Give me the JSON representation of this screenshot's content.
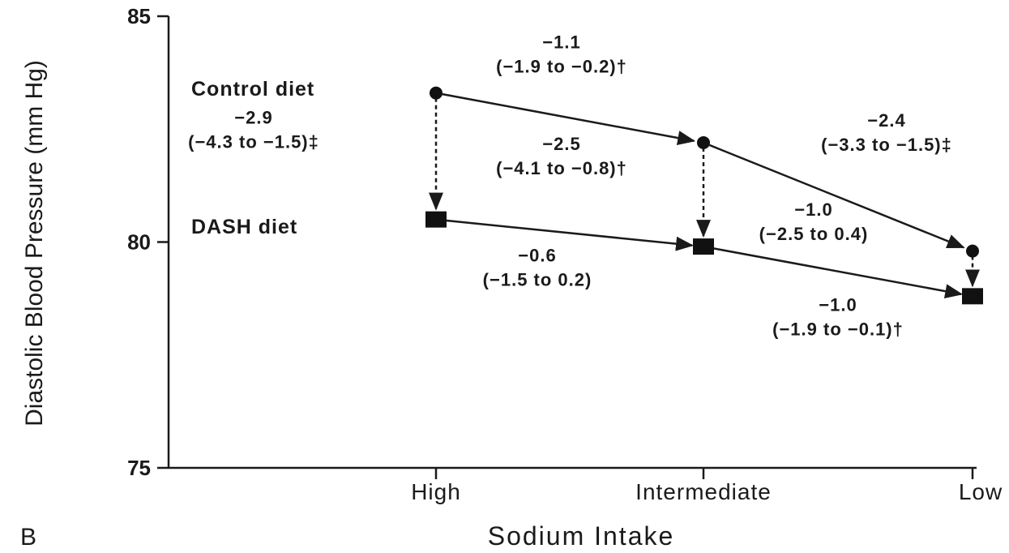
{
  "chart_data": {
    "type": "line",
    "panel_label": "B",
    "xlabel": "Sodium Intake",
    "ylabel": "Diastolic Blood Pressure (mm Hg)",
    "ylim": [
      75,
      85
    ],
    "yticks": [
      75,
      80,
      85
    ],
    "categories": [
      "High",
      "Intermediate",
      "Low"
    ],
    "grid": false,
    "series": [
      {
        "name": "Control diet",
        "marker": "circle",
        "values": [
          83.3,
          82.2,
          79.8
        ]
      },
      {
        "name": "DASH diet",
        "marker": "square",
        "values": [
          80.5,
          79.9,
          78.8
        ]
      }
    ],
    "annotations": [
      {
        "id": "control-high-int",
        "lines": [
          "−1.1",
          "(−1.9 to −0.2)†"
        ]
      },
      {
        "id": "control-int-low",
        "lines": [
          "−2.4",
          "(−3.3 to −1.5)‡"
        ]
      },
      {
        "id": "diet-high",
        "lines": [
          "−2.9",
          "(−4.3 to −1.5)‡"
        ]
      },
      {
        "id": "diet-int",
        "lines": [
          "−2.5",
          "(−4.1 to −0.8)†"
        ]
      },
      {
        "id": "dash-int-low-upper",
        "lines": [
          "−1.0",
          "(−2.5 to 0.4)"
        ]
      },
      {
        "id": "dash-high-int",
        "lines": [
          "−0.6",
          "(−1.5 to 0.2)"
        ]
      },
      {
        "id": "diet-low",
        "lines": [
          "−1.0",
          "(−1.9 to −0.1)†"
        ]
      }
    ]
  }
}
